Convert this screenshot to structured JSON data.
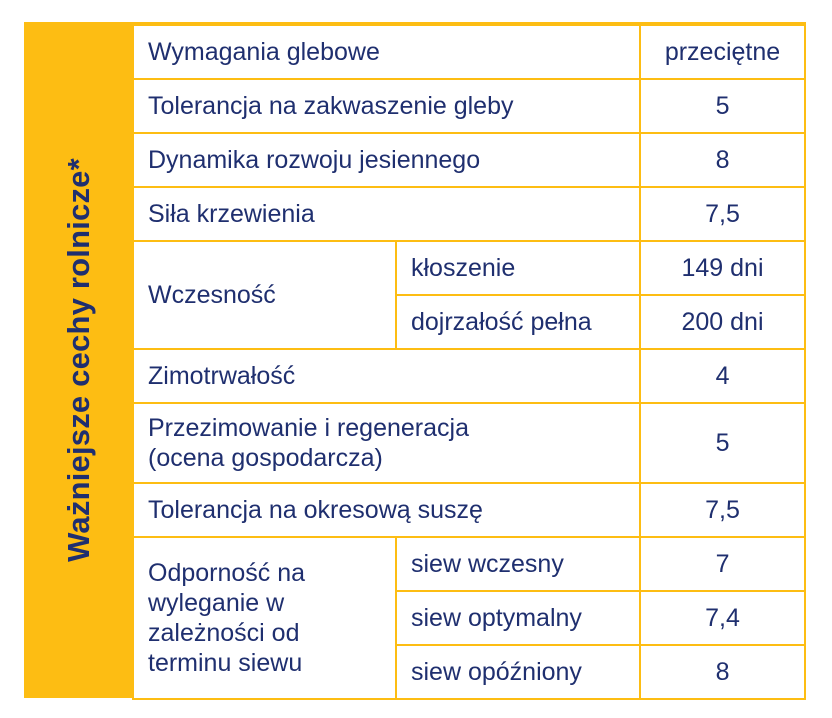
{
  "side_title": "Ważniejsze cechy rolnicze*",
  "rows": {
    "soil_req": {
      "label": "Wymagania glebowe",
      "value": "przeciętne"
    },
    "acid_tol": {
      "label": "Tolerancja na zakwaszenie gleby",
      "value": "5"
    },
    "autumn_dev": {
      "label": "Dynamika rozwoju jesiennego",
      "value": "8"
    },
    "tillering": {
      "label": "Siła krzewienia",
      "value": "7,5"
    },
    "earliness": {
      "label": "Wczesność",
      "heading": {
        "label": "kłoszenie",
        "value": "149 dni"
      },
      "full_ripeness": {
        "label": "dojrzałość pełna",
        "value": "200 dni"
      }
    },
    "winter_hardiness": {
      "label": "Zimotrwałość",
      "value": "4"
    },
    "overwintering": {
      "label_line1": "Przezimowanie i regeneracja",
      "label_line2": "(ocena gospodarcza)",
      "value": "5"
    },
    "drought_tol": {
      "label": "Tolerancja na okresową suszę",
      "value": "7,5"
    },
    "lodging": {
      "label_line1": "Odporność na",
      "label_line2": "wyleganie w",
      "label_line3": "zależności od",
      "label_line4": "terminu siewu",
      "early": {
        "label": "siew wczesny",
        "value": "7"
      },
      "optimal": {
        "label": "siew optymalny",
        "value": "7,4"
      },
      "late": {
        "label": "siew opóźniony",
        "value": "8"
      }
    }
  }
}
